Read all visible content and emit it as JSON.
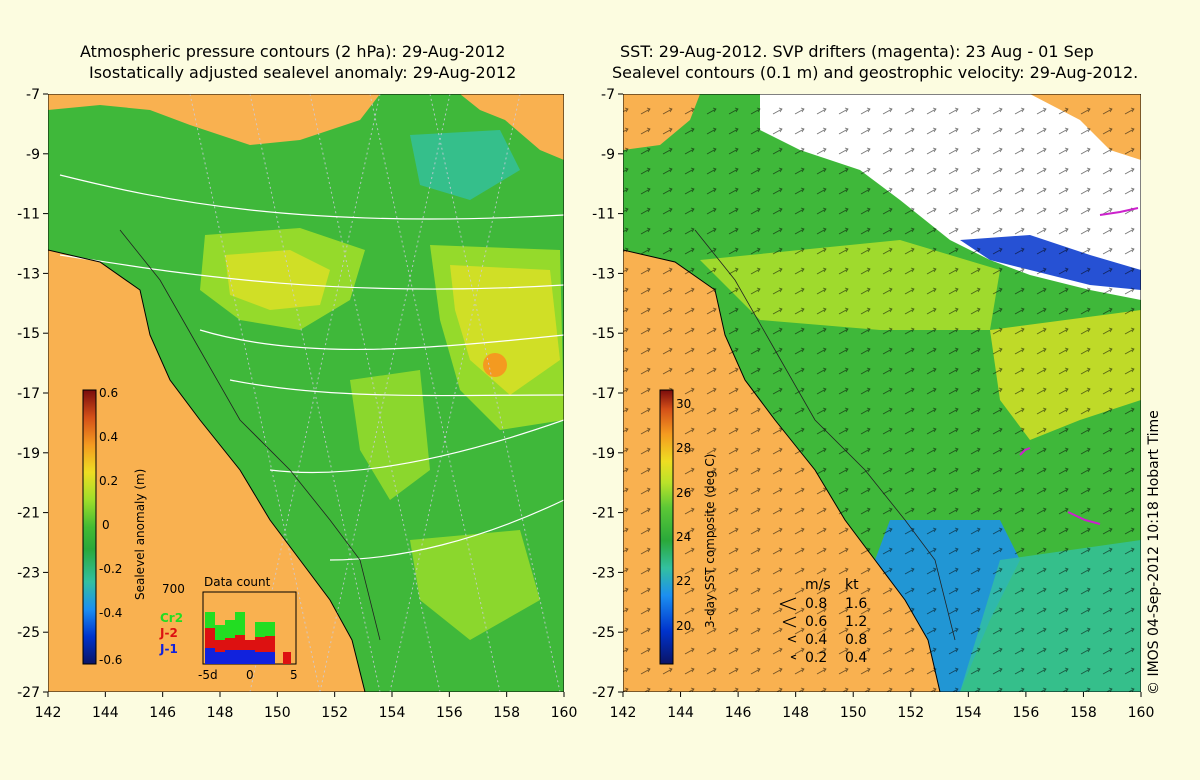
{
  "left_panel": {
    "title_line1": "Atmospheric pressure contours (2 hPa): 29-Aug-2012",
    "title_line2": "Isostatically adjusted sealevel anomaly: 29-Aug-2012",
    "colorbar": {
      "label": "Sealevel anomaly (m)",
      "ticks": [
        "0.6",
        "0.4",
        "0.2",
        "0",
        "-0.2",
        "-0.4",
        "-0.6"
      ],
      "range": [
        -0.6,
        0.6
      ]
    },
    "data_count": {
      "title": "Data count",
      "max_label": "700",
      "x_ticks": [
        "-5d",
        "0",
        "5"
      ],
      "series": [
        {
          "name": "Cr2",
          "color": "#22dd22"
        },
        {
          "name": "J-2",
          "color": "#dd1111"
        },
        {
          "name": "J-1",
          "color": "#1122dd"
        }
      ]
    }
  },
  "right_panel": {
    "title_line1": "SST: 29-Aug-2012. SVP drifters (magenta): 23 Aug - 01 Sep",
    "title_line2": "Sealevel contours (0.1 m) and geostrophic velocity: 29-Aug-2012.",
    "colorbar": {
      "label": "3-day SST composite (deg C)",
      "ticks": [
        "30",
        "28",
        "26",
        "24",
        "22",
        "20"
      ],
      "range": [
        19,
        30.5
      ]
    },
    "velocity_legend": {
      "header_ms": "m/s",
      "header_kt": "kt",
      "rows": [
        {
          "ms": "0.8",
          "kt": "1.6"
        },
        {
          "ms": "0.6",
          "kt": "1.2"
        },
        {
          "ms": "0.4",
          "kt": "0.8"
        },
        {
          "ms": "0.2",
          "kt": "0.4"
        }
      ]
    }
  },
  "axes": {
    "lon_ticks": [
      "142",
      "144",
      "146",
      "148",
      "150",
      "152",
      "154",
      "156",
      "158",
      "160"
    ],
    "lat_ticks": [
      "-7",
      "-9",
      "-11",
      "-13",
      "-15",
      "-17",
      "-19",
      "-21",
      "-23",
      "-25",
      "-27"
    ],
    "lon_range": [
      142,
      160
    ],
    "lat_range": [
      -27,
      -7
    ]
  },
  "credit": "© IMOS 04-Sep-2012 10:18 Hobart Time",
  "colors": {
    "land": "#f9b150",
    "background": "#fcfce0",
    "ocean_green": "#3fb83a"
  }
}
